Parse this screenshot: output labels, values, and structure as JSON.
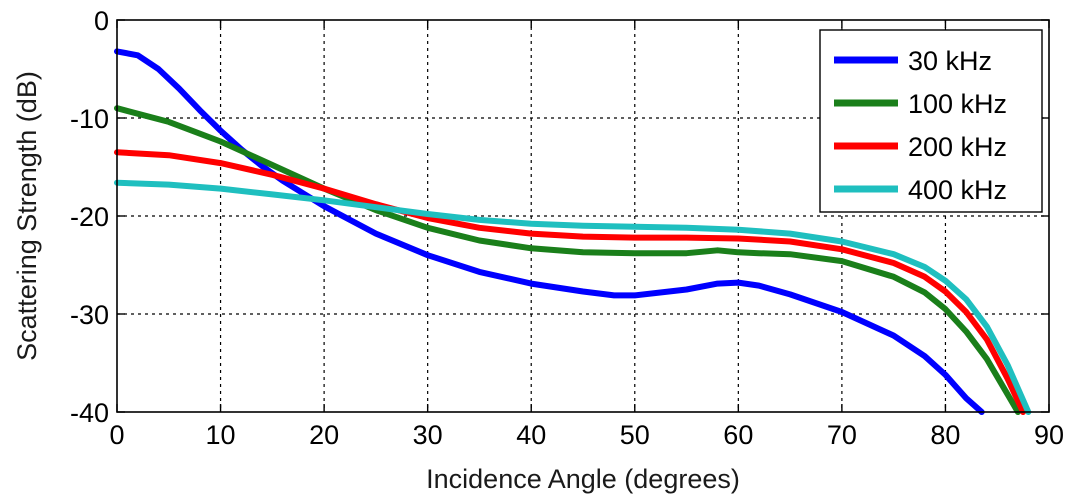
{
  "chart_data": {
    "type": "line",
    "xlabel": "Incidence Angle (degrees)",
    "ylabel": "Scattering Strength (dB)",
    "xlim": [
      0,
      90
    ],
    "ylim": [
      -40,
      0
    ],
    "xticks": [
      0,
      10,
      20,
      30,
      40,
      50,
      60,
      70,
      80,
      90
    ],
    "yticks": [
      0,
      -10,
      -20,
      -30,
      -40
    ],
    "grid": true,
    "legend_position": "top-right",
    "series": [
      {
        "name": "30 kHz",
        "color": "#0000ff",
        "x": [
          0,
          2,
          4,
          6,
          8,
          10,
          12,
          14,
          16,
          18,
          20,
          25,
          30,
          35,
          40,
          45,
          48,
          50,
          55,
          58,
          60,
          62,
          65,
          70,
          75,
          78,
          80,
          82,
          83.5
        ],
        "y": [
          -3.2,
          -3.6,
          -5,
          -7,
          -9.2,
          -11.3,
          -13.2,
          -14.9,
          -16.4,
          -17.7,
          -19,
          -21.8,
          -24,
          -25.7,
          -26.9,
          -27.7,
          -28.1,
          -28.1,
          -27.5,
          -26.9,
          -26.8,
          -27.1,
          -28,
          -29.8,
          -32.2,
          -34.3,
          -36.2,
          -38.6,
          -40
        ]
      },
      {
        "name": "100 kHz",
        "color": "#1a7f1a",
        "x": [
          0,
          5,
          10,
          15,
          20,
          25,
          30,
          35,
          40,
          45,
          50,
          55,
          58,
          60,
          62,
          65,
          70,
          75,
          78,
          80,
          82,
          84,
          86,
          87
        ],
        "y": [
          -9,
          -10.4,
          -12.4,
          -14.8,
          -17.2,
          -19.4,
          -21.2,
          -22.5,
          -23.3,
          -23.7,
          -23.8,
          -23.8,
          -23.5,
          -23.7,
          -23.8,
          -23.9,
          -24.6,
          -26.2,
          -27.8,
          -29.5,
          -31.8,
          -34.6,
          -38.2,
          -40
        ]
      },
      {
        "name": "200 kHz",
        "color": "#ff0000",
        "x": [
          0,
          5,
          10,
          15,
          20,
          25,
          30,
          35,
          40,
          45,
          50,
          55,
          60,
          65,
          70,
          75,
          78,
          80,
          82,
          84,
          86,
          87.5
        ],
        "y": [
          -13.5,
          -13.8,
          -14.6,
          -15.8,
          -17.2,
          -18.8,
          -20.2,
          -21.2,
          -21.8,
          -22.1,
          -22.2,
          -22.2,
          -22.3,
          -22.6,
          -23.4,
          -24.8,
          -26.2,
          -27.7,
          -29.8,
          -32.6,
          -36.6,
          -40
        ]
      },
      {
        "name": "400 kHz",
        "color": "#1fbfbf",
        "x": [
          0,
          5,
          10,
          15,
          20,
          25,
          30,
          35,
          40,
          45,
          50,
          55,
          60,
          65,
          70,
          75,
          78,
          80,
          82,
          84,
          86,
          88
        ],
        "y": [
          -16.6,
          -16.8,
          -17.2,
          -17.8,
          -18.4,
          -19.1,
          -19.8,
          -20.4,
          -20.8,
          -21,
          -21.1,
          -21.2,
          -21.4,
          -21.8,
          -22.6,
          -23.9,
          -25.2,
          -26.6,
          -28.5,
          -31.3,
          -35.2,
          -40
        ]
      }
    ]
  }
}
